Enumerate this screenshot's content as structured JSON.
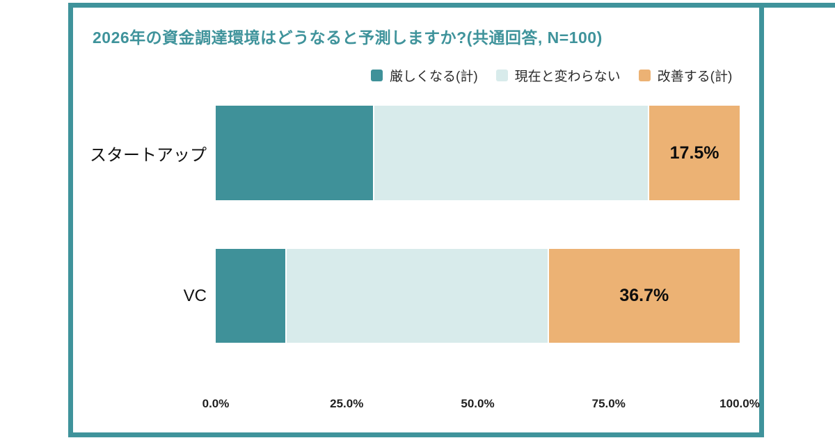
{
  "frame": {
    "color": "#3F939B",
    "background": "#ffffff"
  },
  "chart_data": {
    "type": "bar",
    "subtype": "horizontal_stacked",
    "title": "2026年の資金調達環境はどうなると予測しますか?(共通回答, N=100)",
    "title_color": "#3F939B",
    "categories": [
      "スタートアップ",
      "VC"
    ],
    "series": [
      {
        "name": "厳しくなる(計)",
        "color": "#3F9199",
        "values": [
          30.0,
          13.3
        ],
        "show_value_label": false
      },
      {
        "name": "現在と変わらない",
        "color": "#D8EBEB",
        "values": [
          52.5,
          50.0
        ],
        "show_value_label": false
      },
      {
        "name": "改善する(計)",
        "color": "#ECB274",
        "values": [
          17.5,
          36.7
        ],
        "show_value_label": true
      }
    ],
    "value_labels": [
      "17.5%",
      "36.7%"
    ],
    "x_axis": {
      "ticks": [
        "0.0%",
        "25.0%",
        "50.0%",
        "75.0%",
        "100.0%"
      ],
      "tick_positions": [
        0,
        25,
        50,
        75,
        100
      ],
      "range": [
        0,
        100
      ]
    },
    "legend_position": "top",
    "grid": false
  }
}
